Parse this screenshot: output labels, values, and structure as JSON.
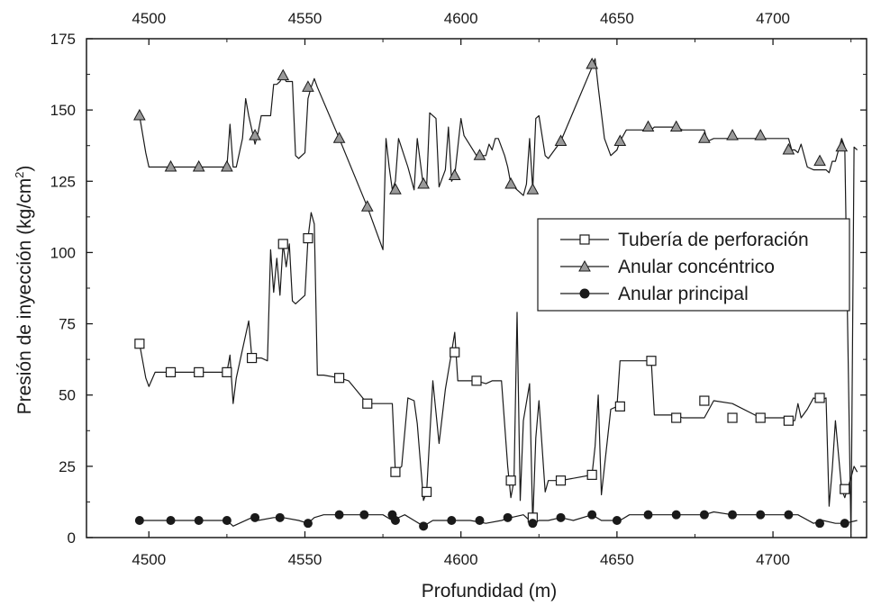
{
  "chart_data": {
    "type": "line",
    "title": "",
    "xlabel": "Profundidad (m)",
    "ylabel_main": "Presión de inyección (kg/cm",
    "ylabel_sup": "2",
    "ylabel_close": ")",
    "xlim": [
      4480,
      4730
    ],
    "ylim": [
      0,
      175
    ],
    "x_ticks": [
      4500,
      4550,
      4600,
      4650,
      4700
    ],
    "y_ticks": [
      0,
      25,
      50,
      75,
      100,
      125,
      150,
      175
    ],
    "grid": false,
    "legend_position": "center-right",
    "series": [
      {
        "name": "Tubería de perforación",
        "marker": "open-square",
        "color": "#1a1a1a",
        "x": [
          4497,
          4499,
          4500,
          4502,
          4507,
          4516,
          4525,
          4526,
          4527,
          4528,
          4532,
          4533,
          4535,
          4536,
          4538,
          4539,
          4540,
          4541,
          4542,
          4543,
          4544,
          4545,
          4546,
          4547,
          4548,
          4550,
          4551,
          4552,
          4553,
          4554,
          4556,
          4561,
          4564,
          4567,
          4570,
          4575,
          4578,
          4579,
          4581,
          4583,
          4585,
          4586,
          4588,
          4589,
          4591,
          4593,
          4595,
          4597,
          4598,
          4599,
          4602,
          4605,
          4608,
          4610,
          4611,
          4613,
          4615,
          4616,
          4617,
          4618,
          4619,
          4620,
          4622,
          4623,
          4624,
          4625,
          4627,
          4628,
          4632,
          4642,
          4643,
          4644,
          4645,
          4648,
          4650,
          4651,
          4653,
          4660,
          4661,
          4662,
          4669,
          4671,
          4678,
          4681,
          4687,
          4696,
          4705,
          4706,
          4707,
          4708,
          4709,
          4711,
          4713,
          4715,
          4717,
          4718,
          4719,
          4720,
          4722,
          4723,
          4725,
          4726,
          4727
        ],
        "y": [
          68,
          56,
          53,
          58,
          58,
          58,
          58,
          64,
          47,
          56,
          76,
          63,
          63,
          63,
          62,
          101,
          86,
          98,
          85,
          103,
          95,
          103,
          83,
          82,
          83,
          85,
          105,
          114,
          110,
          57,
          57,
          56,
          55,
          51,
          47,
          47,
          47,
          23,
          25,
          49,
          48,
          40,
          13,
          16,
          55,
          33,
          52,
          65,
          72,
          55,
          55,
          55,
          54,
          55,
          55,
          55,
          25,
          14,
          20,
          79,
          13,
          41,
          54,
          5,
          35,
          48,
          16,
          20,
          20,
          22,
          32,
          50,
          15,
          45,
          46,
          62,
          62,
          62,
          62,
          43,
          43,
          42,
          42,
          48,
          47,
          42,
          42,
          41,
          41,
          47,
          42,
          45,
          49,
          48,
          49,
          11,
          24,
          41,
          17,
          14,
          21,
          25,
          23
        ]
      },
      {
        "name": "Anular concéntrico",
        "marker": "filled-triangle",
        "color": "#1a1a1a",
        "x": [
          4497,
          4499,
          4500,
          4507,
          4516,
          4525,
          4526,
          4527,
          4528,
          4530,
          4531,
          4532,
          4534,
          4535,
          4536,
          4538,
          4539,
          4540,
          4541,
          4542,
          4543,
          4544,
          4545,
          4546,
          4547,
          4548,
          4550,
          4551,
          4552,
          4553,
          4554,
          4561,
          4570,
          4575,
          4576,
          4577,
          4578,
          4579,
          4580,
          4583,
          4585,
          4586,
          4588,
          4589,
          4590,
          4592,
          4593,
          4595,
          4596,
          4597,
          4598,
          4600,
          4601,
          4605,
          4607,
          4608,
          4609,
          4610,
          4611,
          4612,
          4614,
          4615,
          4616,
          4618,
          4620,
          4621,
          4622,
          4623,
          4624,
          4625,
          4627,
          4628,
          4632,
          4642,
          4643,
          4644,
          4646,
          4648,
          4650,
          4651,
          4653,
          4660,
          4661,
          4662,
          4669,
          4671,
          4678,
          4679,
          4681,
          4687,
          4696,
          4705,
          4706,
          4707,
          4708,
          4709,
          4711,
          4713,
          4715,
          4717,
          4718,
          4719,
          4720,
          4722,
          4723,
          4725,
          4726,
          4727
        ],
        "y": [
          148,
          135,
          130,
          130,
          130,
          130,
          145,
          130,
          130,
          140,
          154,
          148,
          138,
          142,
          148,
          148,
          148,
          159,
          159,
          160,
          162,
          160,
          160,
          160,
          134,
          133,
          135,
          154,
          158,
          161,
          158,
          140,
          116,
          101,
          140,
          130,
          122,
          125,
          140,
          130,
          122,
          140,
          123,
          123,
          149,
          147,
          123,
          129,
          144,
          125,
          127,
          147,
          141,
          134,
          134,
          134,
          138,
          136,
          140,
          140,
          134,
          130,
          124,
          122,
          120,
          124,
          140,
          122,
          147,
          148,
          134,
          133,
          139,
          165,
          168,
          158,
          140,
          134,
          136,
          139,
          143,
          143,
          143,
          144,
          144,
          143,
          143,
          139,
          140,
          140,
          140,
          140,
          136,
          136,
          135,
          138,
          130,
          129,
          129,
          129,
          128,
          132,
          132,
          140,
          137,
          0,
          137,
          136
        ]
      },
      {
        "name": "Anular principal",
        "marker": "filled-circle",
        "color": "#1a1a1a",
        "x": [
          4497,
          4507,
          4516,
          4525,
          4527,
          4533,
          4535,
          4540,
          4543,
          4548,
          4551,
          4553,
          4556,
          4561,
          4569,
          4575,
          4578,
          4582,
          4585,
          4588,
          4591,
          4597,
          4603,
          4608,
          4613,
          4616,
          4620,
          4623,
          4625,
          4628,
          4632,
          4636,
          4642,
          4645,
          4648,
          4651,
          4654,
          4660,
          4669,
          4678,
          4681,
          4687,
          4696,
          4705,
          4708,
          4713,
          4716,
          4720,
          4723,
          4727
        ],
        "y": [
          6,
          6,
          6,
          6,
          4,
          7,
          6,
          7,
          7,
          6,
          5,
          7,
          8,
          8,
          8,
          8,
          6,
          8,
          6,
          4,
          6,
          6,
          6,
          5,
          6,
          7,
          8,
          5,
          6,
          6,
          7,
          6,
          8,
          6,
          6,
          6,
          8,
          8,
          8,
          8,
          9,
          8,
          8,
          8,
          8,
          5,
          6,
          5,
          5,
          6
        ]
      }
    ],
    "marker_points": {
      "Tubería de perforación": [
        [
          4497,
          68
        ],
        [
          4507,
          58
        ],
        [
          4516,
          58
        ],
        [
          4525,
          58
        ],
        [
          4533,
          63
        ],
        [
          4543,
          103
        ],
        [
          4551,
          105
        ],
        [
          4561,
          56
        ],
        [
          4570,
          47
        ],
        [
          4579,
          23
        ],
        [
          4589,
          16
        ],
        [
          4598,
          65
        ],
        [
          4605,
          55
        ],
        [
          4616,
          20
        ],
        [
          4623,
          7
        ],
        [
          4632,
          20
        ],
        [
          4642,
          22
        ],
        [
          4651,
          46
        ],
        [
          4661,
          62
        ],
        [
          4669,
          42
        ],
        [
          4678,
          48
        ],
        [
          4687,
          42
        ],
        [
          4696,
          42
        ],
        [
          4705,
          41
        ],
        [
          4715,
          49
        ],
        [
          4723,
          17
        ]
      ],
      "Anular concéntrico": [
        [
          4497,
          148
        ],
        [
          4507,
          130
        ],
        [
          4516,
          130
        ],
        [
          4525,
          130
        ],
        [
          4534,
          141
        ],
        [
          4543,
          162
        ],
        [
          4551,
          158
        ],
        [
          4561,
          140
        ],
        [
          4570,
          116
        ],
        [
          4579,
          122
        ],
        [
          4588,
          124
        ],
        [
          4598,
          127
        ],
        [
          4606,
          134
        ],
        [
          4616,
          124
        ],
        [
          4623,
          122
        ],
        [
          4632,
          139
        ],
        [
          4642,
          166
        ],
        [
          4651,
          139
        ],
        [
          4660,
          144
        ],
        [
          4669,
          144
        ],
        [
          4678,
          140
        ],
        [
          4687,
          141
        ],
        [
          4696,
          141
        ],
        [
          4705,
          136
        ],
        [
          4715,
          132
        ],
        [
          4722,
          137
        ]
      ],
      "Anular principal": [
        [
          4497,
          6
        ],
        [
          4507,
          6
        ],
        [
          4516,
          6
        ],
        [
          4525,
          6
        ],
        [
          4534,
          7
        ],
        [
          4542,
          7
        ],
        [
          4551,
          5
        ],
        [
          4561,
          8
        ],
        [
          4569,
          8
        ],
        [
          4578,
          8
        ],
        [
          4579,
          6
        ],
        [
          4588,
          4
        ],
        [
          4597,
          6
        ],
        [
          4606,
          6
        ],
        [
          4615,
          7
        ],
        [
          4623,
          5
        ],
        [
          4632,
          7
        ],
        [
          4642,
          8
        ],
        [
          4650,
          6
        ],
        [
          4660,
          8
        ],
        [
          4669,
          8
        ],
        [
          4678,
          8
        ],
        [
          4687,
          8
        ],
        [
          4696,
          8
        ],
        [
          4705,
          8
        ],
        [
          4715,
          5
        ],
        [
          4723,
          5
        ]
      ]
    }
  }
}
